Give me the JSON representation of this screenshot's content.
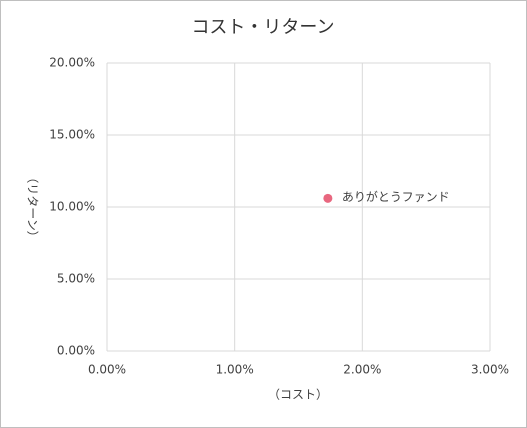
{
  "chart_data": {
    "type": "scatter",
    "title": "コスト・リターン",
    "x_label": "（コスト）",
    "y_label": "（リターン）",
    "series": [
      {
        "name": "ありがとうファンド",
        "color": "#e8677f",
        "x": [
          1.73
        ],
        "values": [
          10.6
        ]
      }
    ],
    "xlim": [
      0,
      3
    ],
    "xticks": [
      {
        "value": 0,
        "label": "0.00%"
      },
      {
        "value": 1,
        "label": "1.00%"
      },
      {
        "value": 2,
        "label": "2.00%"
      },
      {
        "value": 3,
        "label": "3.00%"
      }
    ],
    "ylim": [
      0,
      20
    ],
    "yticks": [
      {
        "value": 0,
        "label": "0.00%"
      },
      {
        "value": 5,
        "label": "5.00%"
      },
      {
        "value": 10,
        "label": "10.00%"
      },
      {
        "value": 15,
        "label": "15.00%"
      },
      {
        "value": 20,
        "label": "20.00%"
      }
    ],
    "grid": true
  }
}
